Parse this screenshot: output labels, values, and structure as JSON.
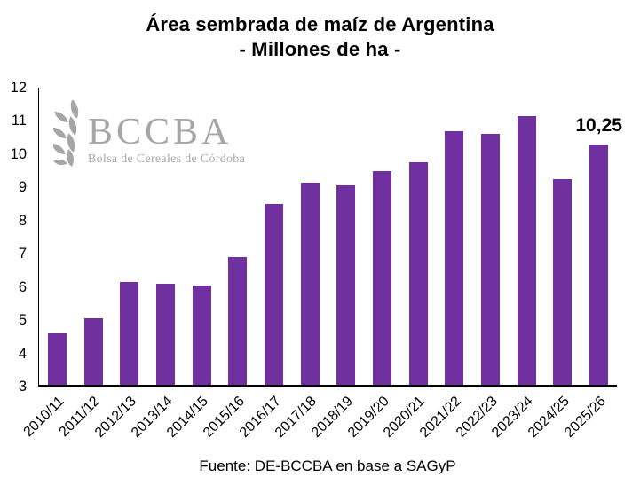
{
  "title": {
    "line1": "Área sembrada de maíz de Argentina",
    "line2": "- Millones de ha -"
  },
  "logo": {
    "acronym": "BCCBA",
    "subtitle": "Bolsa de Cereales de Córdoba",
    "color": "#a6a6a6"
  },
  "footer": {
    "source": "Fuente: DE-BCCBA en base a SAGyP"
  },
  "chart_data": {
    "type": "bar",
    "title": "Área sembrada de maíz de Argentina - Millones de ha -",
    "categories": [
      "2010/11",
      "2011/12",
      "2012/13",
      "2013/14",
      "2014/15",
      "2015/16",
      "2016/17",
      "2017/18",
      "2018/19",
      "2019/20",
      "2020/21",
      "2021/22",
      "2022/23",
      "2023/24",
      "2024/25",
      "2025/26"
    ],
    "values": [
      4.55,
      5.0,
      6.1,
      6.05,
      6.0,
      6.85,
      8.45,
      9.1,
      9.0,
      9.45,
      9.7,
      10.65,
      10.55,
      11.1,
      9.2,
      10.25
    ],
    "bar_color": "#7030a0",
    "ylim": [
      3,
      12
    ],
    "yticks": [
      3,
      4,
      5,
      6,
      7,
      8,
      9,
      10,
      11,
      12
    ],
    "grid": false,
    "legend": "none",
    "data_label": {
      "index": 15,
      "text": "10,25"
    },
    "xlabel_rotation_deg": -45,
    "source": "Fuente: DE-BCCBA en base a SAGyP"
  }
}
